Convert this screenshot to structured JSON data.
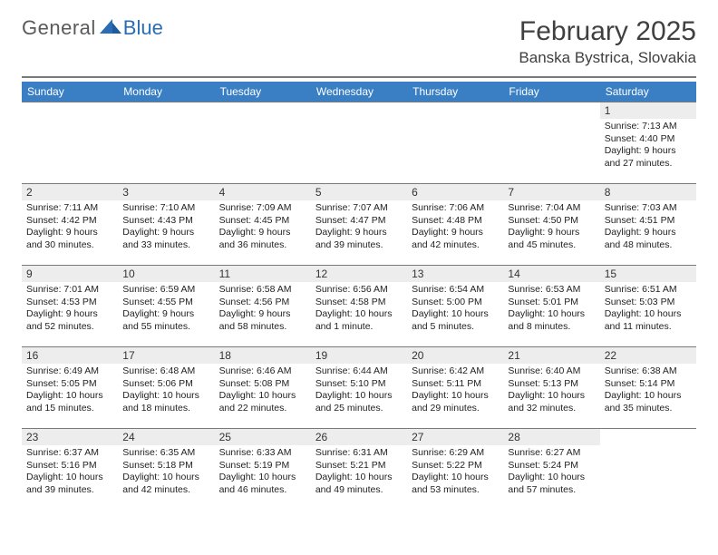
{
  "logo": {
    "text1": "General",
    "text2": "Blue"
  },
  "title": "February 2025",
  "location": "Banska Bystrica, Slovakia",
  "colors": {
    "header_bg": "#3a7fc4",
    "header_text": "#ffffff",
    "daynum_bg": "#ededed",
    "rule": "#7a7a7a",
    "logo_gray": "#5a5a5a",
    "logo_blue": "#2a6db5",
    "body_text": "#222222",
    "background": "#ffffff"
  },
  "weekdays": [
    "Sunday",
    "Monday",
    "Tuesday",
    "Wednesday",
    "Thursday",
    "Friday",
    "Saturday"
  ],
  "weeks": [
    [
      {
        "empty": true
      },
      {
        "empty": true
      },
      {
        "empty": true
      },
      {
        "empty": true
      },
      {
        "empty": true
      },
      {
        "empty": true
      },
      {
        "n": "1",
        "sunrise": "7:13 AM",
        "sunset": "4:40 PM",
        "daylight": "9 hours and 27 minutes."
      }
    ],
    [
      {
        "n": "2",
        "sunrise": "7:11 AM",
        "sunset": "4:42 PM",
        "daylight": "9 hours and 30 minutes."
      },
      {
        "n": "3",
        "sunrise": "7:10 AM",
        "sunset": "4:43 PM",
        "daylight": "9 hours and 33 minutes."
      },
      {
        "n": "4",
        "sunrise": "7:09 AM",
        "sunset": "4:45 PM",
        "daylight": "9 hours and 36 minutes."
      },
      {
        "n": "5",
        "sunrise": "7:07 AM",
        "sunset": "4:47 PM",
        "daylight": "9 hours and 39 minutes."
      },
      {
        "n": "6",
        "sunrise": "7:06 AM",
        "sunset": "4:48 PM",
        "daylight": "9 hours and 42 minutes."
      },
      {
        "n": "7",
        "sunrise": "7:04 AM",
        "sunset": "4:50 PM",
        "daylight": "9 hours and 45 minutes."
      },
      {
        "n": "8",
        "sunrise": "7:03 AM",
        "sunset": "4:51 PM",
        "daylight": "9 hours and 48 minutes."
      }
    ],
    [
      {
        "n": "9",
        "sunrise": "7:01 AM",
        "sunset": "4:53 PM",
        "daylight": "9 hours and 52 minutes."
      },
      {
        "n": "10",
        "sunrise": "6:59 AM",
        "sunset": "4:55 PM",
        "daylight": "9 hours and 55 minutes."
      },
      {
        "n": "11",
        "sunrise": "6:58 AM",
        "sunset": "4:56 PM",
        "daylight": "9 hours and 58 minutes."
      },
      {
        "n": "12",
        "sunrise": "6:56 AM",
        "sunset": "4:58 PM",
        "daylight": "10 hours and 1 minute."
      },
      {
        "n": "13",
        "sunrise": "6:54 AM",
        "sunset": "5:00 PM",
        "daylight": "10 hours and 5 minutes."
      },
      {
        "n": "14",
        "sunrise": "6:53 AM",
        "sunset": "5:01 PM",
        "daylight": "10 hours and 8 minutes."
      },
      {
        "n": "15",
        "sunrise": "6:51 AM",
        "sunset": "5:03 PM",
        "daylight": "10 hours and 11 minutes."
      }
    ],
    [
      {
        "n": "16",
        "sunrise": "6:49 AM",
        "sunset": "5:05 PM",
        "daylight": "10 hours and 15 minutes."
      },
      {
        "n": "17",
        "sunrise": "6:48 AM",
        "sunset": "5:06 PM",
        "daylight": "10 hours and 18 minutes."
      },
      {
        "n": "18",
        "sunrise": "6:46 AM",
        "sunset": "5:08 PM",
        "daylight": "10 hours and 22 minutes."
      },
      {
        "n": "19",
        "sunrise": "6:44 AM",
        "sunset": "5:10 PM",
        "daylight": "10 hours and 25 minutes."
      },
      {
        "n": "20",
        "sunrise": "6:42 AM",
        "sunset": "5:11 PM",
        "daylight": "10 hours and 29 minutes."
      },
      {
        "n": "21",
        "sunrise": "6:40 AM",
        "sunset": "5:13 PM",
        "daylight": "10 hours and 32 minutes."
      },
      {
        "n": "22",
        "sunrise": "6:38 AM",
        "sunset": "5:14 PM",
        "daylight": "10 hours and 35 minutes."
      }
    ],
    [
      {
        "n": "23",
        "sunrise": "6:37 AM",
        "sunset": "5:16 PM",
        "daylight": "10 hours and 39 minutes."
      },
      {
        "n": "24",
        "sunrise": "6:35 AM",
        "sunset": "5:18 PM",
        "daylight": "10 hours and 42 minutes."
      },
      {
        "n": "25",
        "sunrise": "6:33 AM",
        "sunset": "5:19 PM",
        "daylight": "10 hours and 46 minutes."
      },
      {
        "n": "26",
        "sunrise": "6:31 AM",
        "sunset": "5:21 PM",
        "daylight": "10 hours and 49 minutes."
      },
      {
        "n": "27",
        "sunrise": "6:29 AM",
        "sunset": "5:22 PM",
        "daylight": "10 hours and 53 minutes."
      },
      {
        "n": "28",
        "sunrise": "6:27 AM",
        "sunset": "5:24 PM",
        "daylight": "10 hours and 57 minutes."
      },
      {
        "empty": true
      }
    ]
  ],
  "labels": {
    "sunrise": "Sunrise:",
    "sunset": "Sunset:",
    "daylight": "Daylight:"
  }
}
